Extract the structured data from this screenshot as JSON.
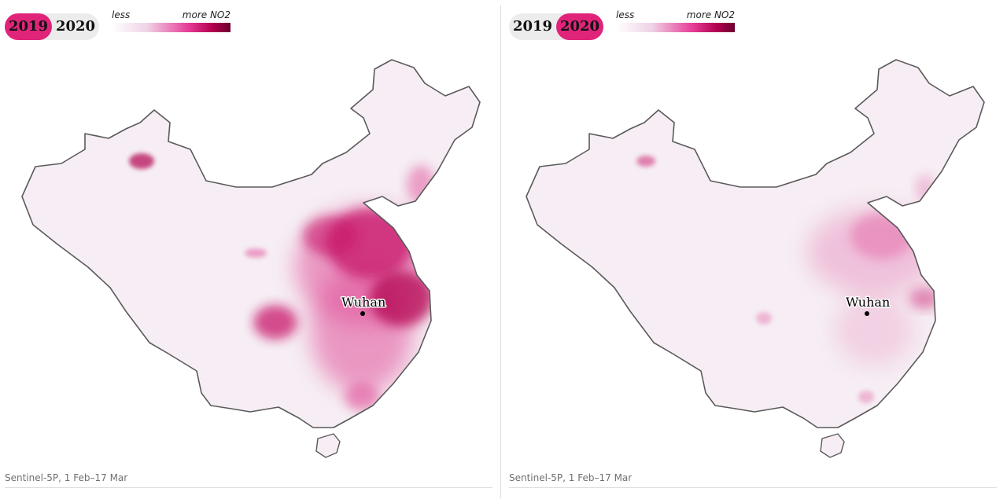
{
  "panels": [
    {
      "toggle": {
        "options": [
          "2019",
          "2020"
        ],
        "active": "2019"
      },
      "legend": {
        "low_label": "less",
        "high_label": "more NO2"
      },
      "city": {
        "name": "Wuhan"
      },
      "source": "Sentinel-5P, 1 Feb–17 Mar",
      "no2_level": "high"
    },
    {
      "toggle": {
        "options": [
          "2019",
          "2020"
        ],
        "active": "2020"
      },
      "legend": {
        "low_label": "less",
        "high_label": "more NO2"
      },
      "city": {
        "name": "Wuhan"
      },
      "source": "Sentinel-5P, 1 Feb–17 Mar",
      "no2_level": "low"
    }
  ],
  "colors": {
    "accent": "#e0247a",
    "land": "#f6eef4",
    "border": "#5a5a5a",
    "no2_high": "#c8196b",
    "no2_mid": "#e0519a"
  }
}
